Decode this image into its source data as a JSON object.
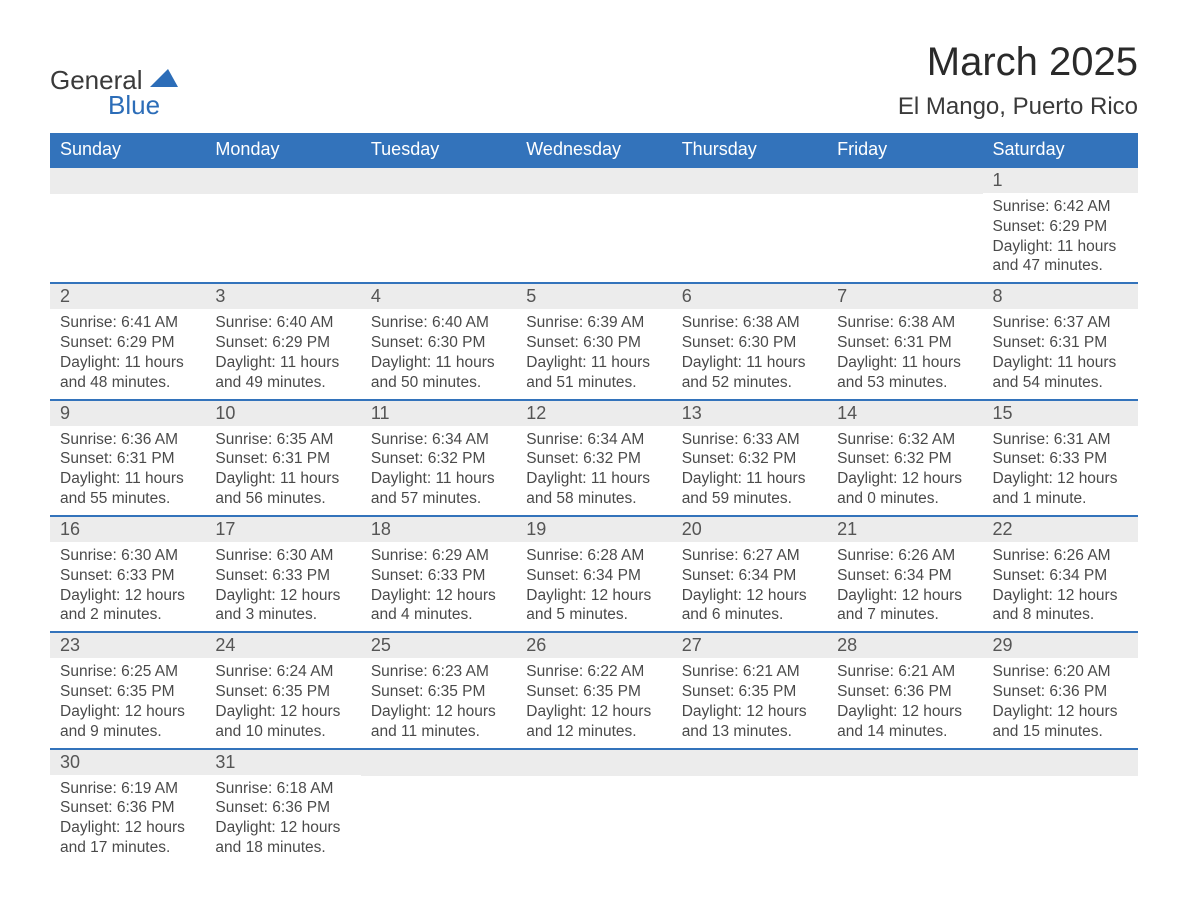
{
  "logo": {
    "general": "General",
    "blue": "Blue",
    "tri_color": "#2c6db8"
  },
  "title": "March 2025",
  "location": "El Mango, Puerto Rico",
  "colors": {
    "header_bg": "#3373bb",
    "header_text": "#ffffff",
    "daynum_bg": "#ececec",
    "border": "#3373bb",
    "body_text": "#4a4a4a"
  },
  "daynames": [
    "Sunday",
    "Monday",
    "Tuesday",
    "Wednesday",
    "Thursday",
    "Friday",
    "Saturday"
  ],
  "weeks": [
    [
      null,
      null,
      null,
      null,
      null,
      null,
      {
        "n": "1",
        "sunrise": "Sunrise: 6:42 AM",
        "sunset": "Sunset: 6:29 PM",
        "daylight": "Daylight: 11 hours and 47 minutes."
      }
    ],
    [
      {
        "n": "2",
        "sunrise": "Sunrise: 6:41 AM",
        "sunset": "Sunset: 6:29 PM",
        "daylight": "Daylight: 11 hours and 48 minutes."
      },
      {
        "n": "3",
        "sunrise": "Sunrise: 6:40 AM",
        "sunset": "Sunset: 6:29 PM",
        "daylight": "Daylight: 11 hours and 49 minutes."
      },
      {
        "n": "4",
        "sunrise": "Sunrise: 6:40 AM",
        "sunset": "Sunset: 6:30 PM",
        "daylight": "Daylight: 11 hours and 50 minutes."
      },
      {
        "n": "5",
        "sunrise": "Sunrise: 6:39 AM",
        "sunset": "Sunset: 6:30 PM",
        "daylight": "Daylight: 11 hours and 51 minutes."
      },
      {
        "n": "6",
        "sunrise": "Sunrise: 6:38 AM",
        "sunset": "Sunset: 6:30 PM",
        "daylight": "Daylight: 11 hours and 52 minutes."
      },
      {
        "n": "7",
        "sunrise": "Sunrise: 6:38 AM",
        "sunset": "Sunset: 6:31 PM",
        "daylight": "Daylight: 11 hours and 53 minutes."
      },
      {
        "n": "8",
        "sunrise": "Sunrise: 6:37 AM",
        "sunset": "Sunset: 6:31 PM",
        "daylight": "Daylight: 11 hours and 54 minutes."
      }
    ],
    [
      {
        "n": "9",
        "sunrise": "Sunrise: 6:36 AM",
        "sunset": "Sunset: 6:31 PM",
        "daylight": "Daylight: 11 hours and 55 minutes."
      },
      {
        "n": "10",
        "sunrise": "Sunrise: 6:35 AM",
        "sunset": "Sunset: 6:31 PM",
        "daylight": "Daylight: 11 hours and 56 minutes."
      },
      {
        "n": "11",
        "sunrise": "Sunrise: 6:34 AM",
        "sunset": "Sunset: 6:32 PM",
        "daylight": "Daylight: 11 hours and 57 minutes."
      },
      {
        "n": "12",
        "sunrise": "Sunrise: 6:34 AM",
        "sunset": "Sunset: 6:32 PM",
        "daylight": "Daylight: 11 hours and 58 minutes."
      },
      {
        "n": "13",
        "sunrise": "Sunrise: 6:33 AM",
        "sunset": "Sunset: 6:32 PM",
        "daylight": "Daylight: 11 hours and 59 minutes."
      },
      {
        "n": "14",
        "sunrise": "Sunrise: 6:32 AM",
        "sunset": "Sunset: 6:32 PM",
        "daylight": "Daylight: 12 hours and 0 minutes."
      },
      {
        "n": "15",
        "sunrise": "Sunrise: 6:31 AM",
        "sunset": "Sunset: 6:33 PM",
        "daylight": "Daylight: 12 hours and 1 minute."
      }
    ],
    [
      {
        "n": "16",
        "sunrise": "Sunrise: 6:30 AM",
        "sunset": "Sunset: 6:33 PM",
        "daylight": "Daylight: 12 hours and 2 minutes."
      },
      {
        "n": "17",
        "sunrise": "Sunrise: 6:30 AM",
        "sunset": "Sunset: 6:33 PM",
        "daylight": "Daylight: 12 hours and 3 minutes."
      },
      {
        "n": "18",
        "sunrise": "Sunrise: 6:29 AM",
        "sunset": "Sunset: 6:33 PM",
        "daylight": "Daylight: 12 hours and 4 minutes."
      },
      {
        "n": "19",
        "sunrise": "Sunrise: 6:28 AM",
        "sunset": "Sunset: 6:34 PM",
        "daylight": "Daylight: 12 hours and 5 minutes."
      },
      {
        "n": "20",
        "sunrise": "Sunrise: 6:27 AM",
        "sunset": "Sunset: 6:34 PM",
        "daylight": "Daylight: 12 hours and 6 minutes."
      },
      {
        "n": "21",
        "sunrise": "Sunrise: 6:26 AM",
        "sunset": "Sunset: 6:34 PM",
        "daylight": "Daylight: 12 hours and 7 minutes."
      },
      {
        "n": "22",
        "sunrise": "Sunrise: 6:26 AM",
        "sunset": "Sunset: 6:34 PM",
        "daylight": "Daylight: 12 hours and 8 minutes."
      }
    ],
    [
      {
        "n": "23",
        "sunrise": "Sunrise: 6:25 AM",
        "sunset": "Sunset: 6:35 PM",
        "daylight": "Daylight: 12 hours and 9 minutes."
      },
      {
        "n": "24",
        "sunrise": "Sunrise: 6:24 AM",
        "sunset": "Sunset: 6:35 PM",
        "daylight": "Daylight: 12 hours and 10 minutes."
      },
      {
        "n": "25",
        "sunrise": "Sunrise: 6:23 AM",
        "sunset": "Sunset: 6:35 PM",
        "daylight": "Daylight: 12 hours and 11 minutes."
      },
      {
        "n": "26",
        "sunrise": "Sunrise: 6:22 AM",
        "sunset": "Sunset: 6:35 PM",
        "daylight": "Daylight: 12 hours and 12 minutes."
      },
      {
        "n": "27",
        "sunrise": "Sunrise: 6:21 AM",
        "sunset": "Sunset: 6:35 PM",
        "daylight": "Daylight: 12 hours and 13 minutes."
      },
      {
        "n": "28",
        "sunrise": "Sunrise: 6:21 AM",
        "sunset": "Sunset: 6:36 PM",
        "daylight": "Daylight: 12 hours and 14 minutes."
      },
      {
        "n": "29",
        "sunrise": "Sunrise: 6:20 AM",
        "sunset": "Sunset: 6:36 PM",
        "daylight": "Daylight: 12 hours and 15 minutes."
      }
    ],
    [
      {
        "n": "30",
        "sunrise": "Sunrise: 6:19 AM",
        "sunset": "Sunset: 6:36 PM",
        "daylight": "Daylight: 12 hours and 17 minutes."
      },
      {
        "n": "31",
        "sunrise": "Sunrise: 6:18 AM",
        "sunset": "Sunset: 6:36 PM",
        "daylight": "Daylight: 12 hours and 18 minutes."
      },
      null,
      null,
      null,
      null,
      null
    ]
  ]
}
